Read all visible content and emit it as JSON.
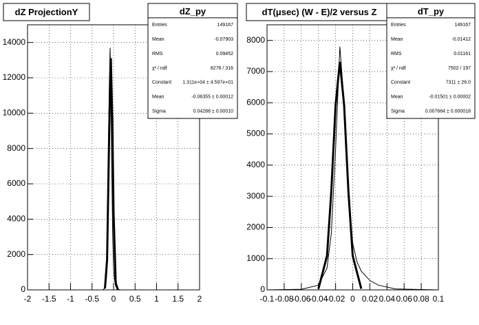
{
  "chart_data": [
    {
      "type": "line",
      "title": "dZ ProjectionY",
      "xlim": [
        -2,
        2
      ],
      "xticks": [
        -2,
        -1.5,
        -1,
        -0.5,
        0,
        0.5,
        1,
        1.5,
        2
      ],
      "ylim": [
        0,
        15000
      ],
      "yticks": [
        0,
        2000,
        4000,
        6000,
        8000,
        10000,
        12000,
        14000
      ],
      "grid": true,
      "series": [
        {
          "color": "#000000",
          "width": 1,
          "x": [
            -0.25,
            -0.2,
            -0.16,
            -0.14,
            -0.12,
            -0.1,
            -0.08,
            -0.06,
            -0.04,
            -0.02,
            0,
            0.02,
            0.05,
            0.1,
            0.15
          ],
          "values": [
            0,
            100,
            800,
            3000,
            8000,
            11500,
            13700,
            11000,
            6500,
            3000,
            1200,
            600,
            200,
            50,
            0
          ]
        },
        {
          "color": "#000000",
          "width": 3,
          "x": [
            -0.2,
            -0.15,
            -0.1,
            -0.0636,
            -0.03,
            0,
            0.05,
            0.1
          ],
          "values": [
            83,
            1720,
            9140,
            13110,
            9660,
            4370,
            395,
            9
          ]
        }
      ],
      "stats": {
        "title": "dZ_py",
        "rows": [
          [
            "Entries",
            "149167"
          ],
          [
            "Mean",
            "-0.07903"
          ],
          [
            "RMS",
            "0.09452"
          ],
          [
            "χ² / ndf",
            "8276 / 316"
          ],
          [
            "Constant",
            "1.311e+04 ± 4.597e+01"
          ],
          [
            "Mean",
            "-0.06355 ± 0.00012"
          ],
          [
            "Sigma",
            "0.04288 ± 0.00010"
          ]
        ]
      }
    },
    {
      "type": "line",
      "title": "dT(μsec) (W - E)/2 versus Z",
      "xlim": [
        -0.1,
        0.1
      ],
      "xticks": [
        -0.1,
        -0.08,
        -0.06,
        -0.04,
        -0.02,
        0,
        0.02,
        0.04,
        0.06,
        0.08,
        0.1
      ],
      "ylim": [
        0,
        8500
      ],
      "yticks": [
        0,
        1000,
        2000,
        3000,
        4000,
        5000,
        6000,
        7000,
        8000
      ],
      "grid": true,
      "series": [
        {
          "color": "#000000",
          "width": 1,
          "x": [
            -0.1,
            -0.06,
            -0.04,
            -0.03,
            -0.025,
            -0.02,
            -0.015,
            -0.01,
            -0.005,
            0,
            0.005,
            0.01,
            0.02,
            0.03,
            0.05,
            0.1
          ],
          "values": [
            0,
            20,
            150,
            700,
            1800,
            4500,
            7800,
            6000,
            3200,
            1500,
            900,
            600,
            300,
            150,
            30,
            0
          ]
        },
        {
          "color": "#000000",
          "width": 3,
          "x": [
            -0.04,
            -0.03,
            -0.025,
            -0.02,
            -0.015,
            -0.01,
            -0.005,
            0,
            0.01
          ],
          "values": [
            37,
            1090,
            3150,
            5920,
            7311,
            5920,
            3150,
            1090,
            37
          ]
        }
      ],
      "stats": {
        "title": "dT_py",
        "rows": [
          [
            "Entries",
            "149167"
          ],
          [
            "Mean",
            "-0.01412"
          ],
          [
            "RMS",
            "0.01161"
          ],
          [
            "χ² / ndf",
            "7502 / 197"
          ],
          [
            "Constant",
            "7311 ± 26.0"
          ],
          [
            "Mean",
            "-0.01501 ± 0.00002"
          ],
          [
            "Sigma",
            "0.007684 ± 0.000018"
          ]
        ]
      }
    }
  ]
}
